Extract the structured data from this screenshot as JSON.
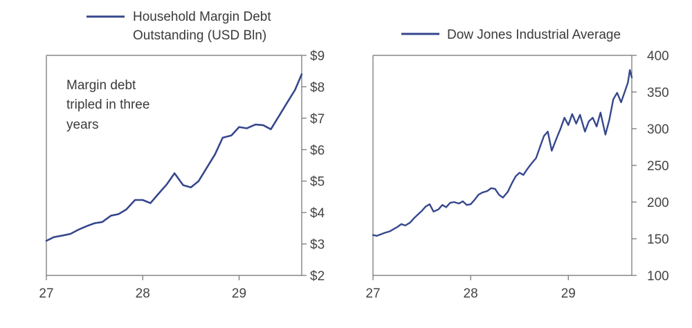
{
  "chart_data": [
    {
      "type": "line",
      "legend": [
        "Household Margin Debt",
        "Outstanding (USD Bln)"
      ],
      "annotation": [
        "Margin debt",
        "tripled in three",
        "years"
      ],
      "x_ticks": [
        "27",
        "28",
        "29"
      ],
      "y_ticks": [
        "$2",
        "$3",
        "$4",
        "$5",
        "$6",
        "$7",
        "$8",
        "$9"
      ],
      "xlim": [
        27,
        29.65
      ],
      "ylim": [
        2,
        9
      ],
      "color": "#35478c",
      "series": [
        {
          "x": [
            27.0,
            27.08,
            27.17,
            27.25,
            27.33,
            27.42,
            27.5,
            27.58,
            27.67,
            27.75,
            27.83,
            27.92,
            28.0,
            28.08,
            28.17,
            28.25,
            28.33,
            28.42,
            28.5,
            28.58,
            28.67,
            28.75,
            28.83,
            28.92,
            29.0,
            29.08,
            29.17,
            29.25,
            29.33,
            29.42,
            29.5,
            29.58,
            29.65
          ],
          "y": [
            3.1,
            3.22,
            3.27,
            3.32,
            3.45,
            3.57,
            3.66,
            3.7,
            3.9,
            3.95,
            4.1,
            4.4,
            4.4,
            4.3,
            4.62,
            4.9,
            5.25,
            4.87,
            4.8,
            5.0,
            5.45,
            5.85,
            6.38,
            6.45,
            6.72,
            6.68,
            6.8,
            6.78,
            6.65,
            7.1,
            7.5,
            7.9,
            8.4
          ]
        }
      ]
    },
    {
      "type": "line",
      "legend": [
        "Dow Jones Industrial Average"
      ],
      "x_ticks": [
        "27",
        "28",
        "29"
      ],
      "y_ticks": [
        "100",
        "150",
        "200",
        "250",
        "300",
        "350",
        "400"
      ],
      "xlim": [
        27,
        29.65
      ],
      "ylim": [
        100,
        400
      ],
      "color": "#35478c",
      "series": [
        {
          "x": [
            27.0,
            27.04,
            27.08,
            27.12,
            27.17,
            27.21,
            27.25,
            27.29,
            27.33,
            27.38,
            27.42,
            27.46,
            27.5,
            27.54,
            27.58,
            27.62,
            27.67,
            27.71,
            27.75,
            27.79,
            27.83,
            27.88,
            27.92,
            27.96,
            28.0,
            28.04,
            28.08,
            28.12,
            28.17,
            28.21,
            28.25,
            28.29,
            28.33,
            28.38,
            28.42,
            28.46,
            28.5,
            28.54,
            28.58,
            28.62,
            28.67,
            28.71,
            28.75,
            28.79,
            28.83,
            28.88,
            28.92,
            28.96,
            29.0,
            29.04,
            29.08,
            29.12,
            29.17,
            29.21,
            29.25,
            29.29,
            29.33,
            29.38,
            29.42,
            29.46,
            29.5,
            29.54,
            29.58,
            29.61,
            29.63,
            29.65
          ],
          "y": [
            155,
            154,
            156,
            158,
            160,
            163,
            166,
            170,
            168,
            172,
            178,
            183,
            188,
            194,
            197,
            187,
            190,
            196,
            193,
            199,
            200,
            198,
            201,
            196,
            197,
            203,
            210,
            213,
            215,
            219,
            218,
            210,
            206,
            214,
            225,
            235,
            240,
            237,
            245,
            252,
            260,
            275,
            290,
            296,
            270,
            287,
            300,
            315,
            305,
            320,
            307,
            319,
            296,
            310,
            315,
            303,
            322,
            292,
            312,
            340,
            349,
            336,
            351,
            363,
            380,
            370
          ]
        }
      ]
    }
  ]
}
